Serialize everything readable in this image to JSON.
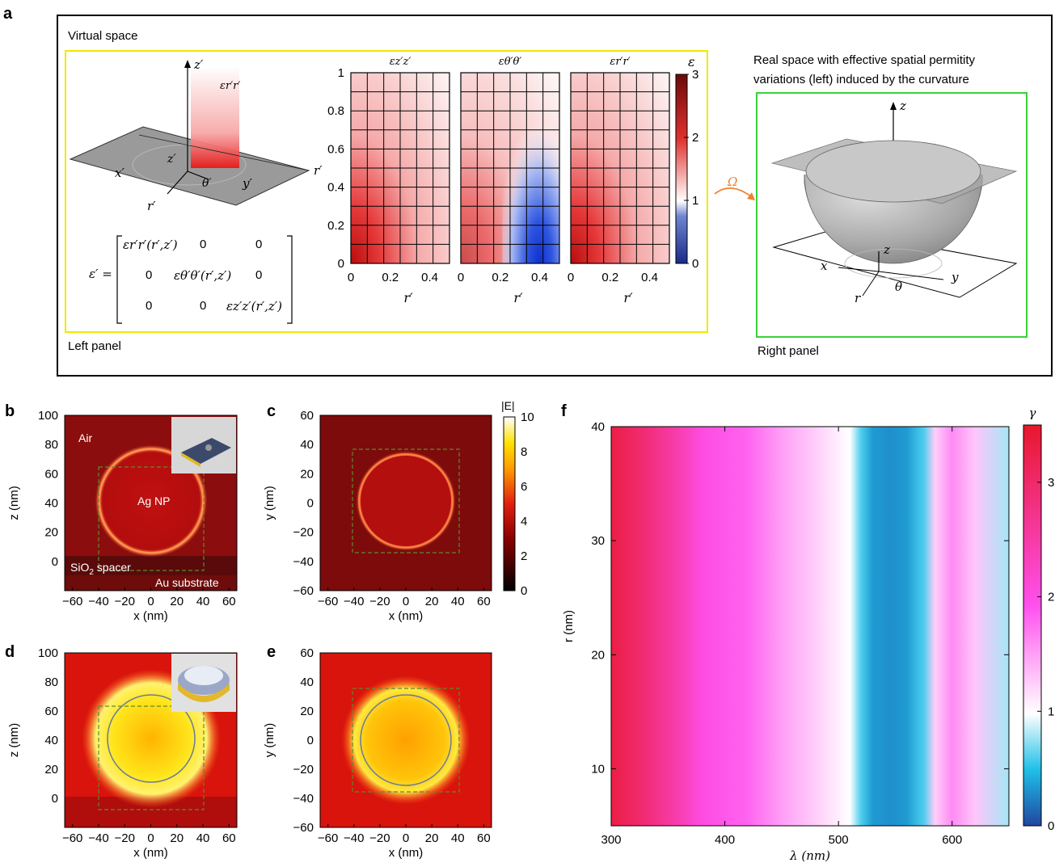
{
  "panel_labels": {
    "a": "a",
    "b": "b",
    "c": "c",
    "d": "d",
    "e": "e",
    "f": "f"
  },
  "panel_a": {
    "virtual_space": "Virtual space",
    "left_panel": "Left panel",
    "right_panel": "Right panel",
    "real_space_line1": "Real space with effective spatial permitity",
    "real_space_line2": "variations (left) induced by the curvature",
    "omega": "Ω",
    "eps_symbol": "ε",
    "heatmap_titles": [
      "εz′z′",
      "εθ′θ′",
      "εr′r′"
    ],
    "heatmap_xlabel": "r′",
    "heatmap_yticks": [
      "0",
      "0.2",
      "0.4",
      "0.6",
      "0.8",
      "1"
    ],
    "heatmap_xticks": [
      "0",
      "0.2",
      "0.4"
    ],
    "colorbar_ticks": [
      "0",
      "1",
      "2",
      "3"
    ],
    "tensor_lhs": "ε′ =",
    "tensor_rows": [
      [
        "εr′r′(r′,z′)",
        "0",
        "0"
      ],
      [
        "0",
        "εθ′θ′(r′,z′)",
        "0"
      ],
      [
        "0",
        "0",
        "εz′z′(r′,z′)"
      ]
    ],
    "left_axes": {
      "z": "z′",
      "x": "x′",
      "y": "y′",
      "r": "r′",
      "theta": "θ′",
      "r_edge": "r′",
      "eps_plane": "εr′r′"
    },
    "right_axes": {
      "z_top": "z",
      "z": "z",
      "x": "x",
      "y": "y",
      "r": "r",
      "theta": "θ"
    }
  },
  "panels_bcde": {
    "xlabel": "x (nm)",
    "ylabel_z": "z (nm)",
    "ylabel_y": "y (nm)",
    "xticks": [
      "−60",
      "−40",
      "−20",
      "0",
      "20",
      "40",
      "60"
    ],
    "zticks": [
      "100",
      "80",
      "60",
      "40",
      "20",
      "0"
    ],
    "yticks": [
      "60",
      "40",
      "20",
      "0",
      "−20",
      "−40",
      "−60"
    ],
    "labels_b": {
      "air": "Air",
      "ag": "Ag NP",
      "sio2": "SiO",
      "sio2_sub": "2",
      "spacer": " spacer",
      "au": "Au substrate"
    },
    "colorbar_title": "|E|",
    "colorbar_ticks": [
      "10",
      "8",
      "6",
      "4",
      "2",
      "0"
    ]
  },
  "chart_data": [
    {
      "type": "heatmap",
      "title": "",
      "xlabel": "λ (nm)",
      "ylabel": "r (nm)",
      "xlim": [
        300,
        650
      ],
      "ylim": [
        5,
        40
      ],
      "xticks": [
        "300",
        "400",
        "500",
        "600"
      ],
      "yticks": [
        "10",
        "20",
        "30",
        "40"
      ],
      "colorbar_label": "γ",
      "colorbar_ticks": [
        "0",
        "1",
        "2",
        "3"
      ],
      "colorbar_range": [
        0,
        3.5
      ],
      "profile_lambda_nm": [
        300,
        330,
        360,
        380,
        420,
        450,
        480,
        510,
        520,
        530,
        545,
        560,
        575,
        585,
        600,
        620,
        650
      ],
      "profile_gamma": [
        3.3,
        2.9,
        2.4,
        2.0,
        1.8,
        1.5,
        1.25,
        1.0,
        0.6,
        0.35,
        0.3,
        0.35,
        0.6,
        1.25,
        1.6,
        1.3,
        0.8
      ]
    },
    {
      "type": "heatmap",
      "title": "εz′z′",
      "xlabel": "r′",
      "xlim": [
        0,
        0.5
      ],
      "ylim": [
        0,
        1
      ],
      "colorbar_label": "ε",
      "colorbar_range": [
        0,
        3
      ]
    },
    {
      "type": "heatmap",
      "title": "εθ′θ′",
      "xlabel": "r′",
      "xlim": [
        0,
        0.5
      ],
      "ylim": [
        0,
        1
      ],
      "colorbar_label": "ε",
      "colorbar_range": [
        0,
        3
      ]
    },
    {
      "type": "heatmap",
      "title": "εr′r′",
      "xlabel": "r′",
      "xlim": [
        0,
        0.5
      ],
      "ylim": [
        0,
        1
      ],
      "colorbar_label": "ε",
      "colorbar_range": [
        0,
        3
      ]
    }
  ]
}
